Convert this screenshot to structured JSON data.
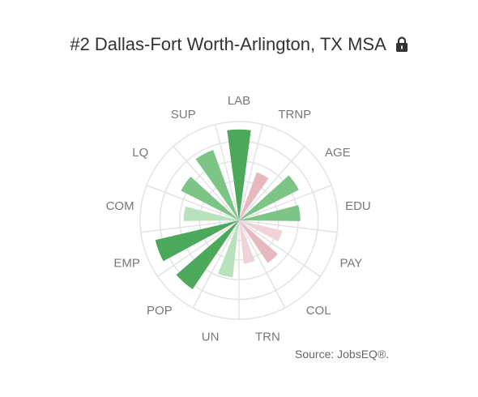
{
  "title": "#2 Dallas-Fort Worth-Arlington, TX MSA",
  "lock_icon": "lock-icon",
  "source": "Source: JobsEQ®.",
  "colors": {
    "grid": "#e3e3e3",
    "positive_strong": "#4ca85a",
    "positive_mid": "#7dc487",
    "positive_light": "#b8e2bc",
    "negative": "#e8b8bf",
    "negative_light": "#f0d3d7"
  },
  "chart_data": {
    "type": "polar-bar",
    "title": "#2 Dallas-Fort Worth-Arlington, TX MSA",
    "rmax": 100,
    "grid_rings": [
      20,
      40,
      60,
      80,
      100
    ],
    "grid": true,
    "categories": [
      "LAB",
      "TRNP",
      "AGE",
      "EDU",
      "PAY",
      "COL",
      "TRN",
      "UN",
      "POP",
      "EMP",
      "COM",
      "LQ",
      "SUP"
    ],
    "values": [
      92,
      52,
      68,
      62,
      45,
      52,
      44,
      58,
      84,
      87,
      56,
      66,
      76
    ],
    "direction": [
      "positive",
      "negative",
      "positive",
      "positive",
      "negative",
      "negative",
      "negative",
      "positive",
      "positive",
      "positive",
      "positive",
      "positive",
      "positive"
    ]
  }
}
